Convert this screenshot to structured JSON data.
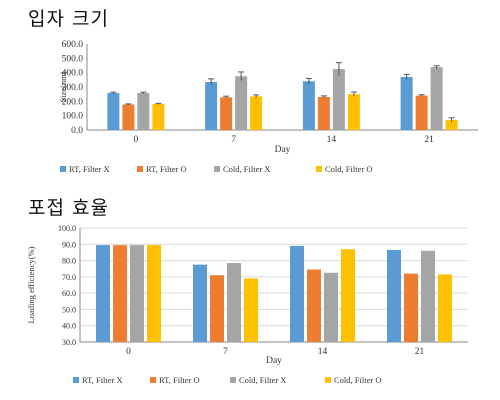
{
  "headings": {
    "top": "입자 크기",
    "bottom": "포접 효율"
  },
  "colors": {
    "rt_x": "#5b9bd5",
    "rt_o": "#ed7d31",
    "cold_x": "#a5a5a5",
    "cold_o": "#ffc000",
    "grid": "#d9d9d9",
    "axis": "#888888",
    "error": "#555555"
  },
  "chart_data": [
    {
      "type": "bar",
      "title": "입자 크기",
      "xlabel": "Day",
      "ylabel": "Size(nm)",
      "categories": [
        "0",
        "7",
        "14",
        "21"
      ],
      "ylim": [
        0,
        600
      ],
      "yticks": [
        "0.0",
        "100.0",
        "200.0",
        "300.0",
        "400.0",
        "500.0",
        "600.0"
      ],
      "grid": false,
      "legend": "bottom",
      "series": [
        {
          "name": "RT, Filter X",
          "color": "#5b9bd5",
          "values": [
            258,
            335,
            340,
            370
          ],
          "errors": [
            6,
            22,
            20,
            18
          ]
        },
        {
          "name": "RT, Filter O",
          "color": "#ed7d31",
          "values": [
            178,
            228,
            230,
            240
          ],
          "errors": [
            4,
            8,
            8,
            6
          ]
        },
        {
          "name": "Cold, Filter X",
          "color": "#a5a5a5",
          "values": [
            258,
            375,
            425,
            438
          ],
          "errors": [
            6,
            30,
            45,
            10
          ]
        },
        {
          "name": "Cold, Filter O",
          "color": "#ffc000",
          "values": [
            182,
            235,
            250,
            70
          ],
          "errors": [
            4,
            10,
            15,
            15
          ]
        }
      ]
    },
    {
      "type": "bar",
      "title": "포접 효율",
      "xlabel": "Day",
      "ylabel": "Loading efficiency(%)",
      "categories": [
        "0",
        "7",
        "14",
        "21"
      ],
      "ylim": [
        30,
        100
      ],
      "yticks": [
        "30.0",
        "40.0",
        "50.0",
        "60.0",
        "70.0",
        "80.0",
        "90.0",
        "100.0"
      ],
      "grid": true,
      "legend": "bottom",
      "series": [
        {
          "name": "RT, Filter X",
          "color": "#5b9bd5",
          "values": [
            89.5,
            77.5,
            89,
            86.5
          ]
        },
        {
          "name": "RT, Filter O",
          "color": "#ed7d31",
          "values": [
            89.5,
            71,
            74.5,
            72
          ]
        },
        {
          "name": "Cold, Filter X",
          "color": "#a5a5a5",
          "values": [
            89.5,
            78.5,
            72.5,
            86
          ]
        },
        {
          "name": "Cold, Filter O",
          "color": "#ffc000",
          "values": [
            89.5,
            69,
            87,
            71.5
          ]
        }
      ]
    }
  ]
}
